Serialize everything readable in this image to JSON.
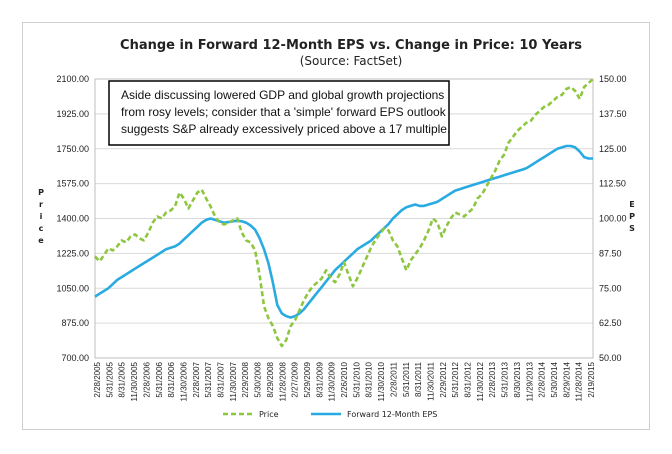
{
  "chart_data": {
    "type": "line",
    "title": "Change in Forward 12-Month EPS vs. Change in Price: 10 Years",
    "subtitle": "(Source: FactSet)",
    "ylabel_left": "Price",
    "ylabel_right": "EPS",
    "ylim_left": [
      700,
      2100
    ],
    "ylim_right": [
      50,
      150
    ],
    "yticks_left": [
      "2100.00",
      "1925.00",
      "1750.00",
      "1575.00",
      "1400.00",
      "1225.00",
      "1050.00",
      "875.00",
      "700.00"
    ],
    "yticks_right": [
      "150.00",
      "137.50",
      "125.00",
      "112.50",
      "100.00",
      "87.50",
      "75.00",
      "62.50",
      "50.00"
    ],
    "x_ticks": [
      "2/28/2005",
      "5/31/2005",
      "8/31/2005",
      "11/30/2005",
      "2/28/2006",
      "5/31/2006",
      "8/31/2006",
      "11/30/2006",
      "2/28/2007",
      "5/31/2007",
      "8/31/2007",
      "11/30/2007",
      "2/29/2008",
      "5/30/2008",
      "8/29/2008",
      "11/28/2008",
      "2/27/2009",
      "5/29/2009",
      "8/31/2009",
      "11/30/2009",
      "2/26/2010",
      "5/31/2010",
      "8/31/2010",
      "11/30/2010",
      "2/28/2011",
      "5/31/2011",
      "8/31/2011",
      "11/30/2011",
      "2/29/2012",
      "5/31/2012",
      "8/31/2012",
      "11/30/2012",
      "2/28/2013",
      "5/31/2013",
      "8/30/2013",
      "11/29/2013",
      "2/28/2014",
      "5/30/2014",
      "8/29/2014",
      "11/28/2014",
      "2/19/2015"
    ],
    "grid": true,
    "legend_position": "bottom",
    "annotation": [
      "Aside discussing lowered GDP and global growth projections",
      "from rosy levels; consider that a 'simple' forward EPS outlook",
      "suggests S&P already excessively priced above a 17 multiple."
    ],
    "series": [
      {
        "name": "Price",
        "axis": "left",
        "color": "#8DC63F",
        "style": "dashed",
        "values": [
          1210,
          1185,
          1215,
          1250,
          1240,
          1260,
          1290,
          1280,
          1310,
          1320,
          1300,
          1290,
          1330,
          1380,
          1410,
          1400,
          1430,
          1440,
          1460,
          1530,
          1500,
          1450,
          1490,
          1530,
          1545,
          1500,
          1460,
          1410,
          1380,
          1370,
          1380,
          1390,
          1400,
          1330,
          1290,
          1280,
          1240,
          1120,
          960,
          900,
          860,
          800,
          760,
          790,
          860,
          890,
          940,
          990,
          1030,
          1060,
          1080,
          1100,
          1140,
          1100,
          1080,
          1120,
          1180,
          1120,
          1060,
          1100,
          1150,
          1200,
          1250,
          1290,
          1320,
          1350,
          1340,
          1290,
          1260,
          1200,
          1140,
          1190,
          1220,
          1250,
          1290,
          1340,
          1400,
          1380,
          1310,
          1360,
          1400,
          1430,
          1420,
          1410,
          1430,
          1450,
          1500,
          1520,
          1560,
          1600,
          1640,
          1690,
          1720,
          1780,
          1810,
          1840,
          1860,
          1880,
          1890,
          1920,
          1940,
          1960,
          1970,
          1990,
          2010,
          2020,
          2050,
          2060,
          2040,
          2000,
          2060,
          2080,
          2100
        ]
      },
      {
        "name": "Forward 12-Month EPS",
        "axis": "right",
        "color": "#29ABE2",
        "style": "solid",
        "values": [
          72,
          73,
          74,
          75,
          76.5,
          78,
          79,
          80,
          81,
          82,
          83,
          84,
          85,
          86,
          87,
          88,
          89,
          89.5,
          90,
          91,
          92.5,
          94,
          95.5,
          97,
          98.5,
          99.5,
          100,
          99.5,
          99,
          98.5,
          98.7,
          99,
          99.2,
          99,
          98.5,
          97.5,
          96,
          93,
          89,
          84,
          77,
          69,
          66,
          65,
          64.5,
          65,
          66,
          67.5,
          69.5,
          71.5,
          73.5,
          75.5,
          77.5,
          79.5,
          81.5,
          83,
          84.5,
          86,
          87.5,
          89,
          90,
          91,
          92,
          93.5,
          95,
          96.5,
          98,
          100,
          101.5,
          103,
          104,
          104.5,
          105,
          104.5,
          104.5,
          105,
          105.5,
          106,
          107,
          108,
          109,
          110,
          110.5,
          111,
          111.5,
          112,
          112.5,
          113,
          113.5,
          114,
          114.5,
          115,
          115.5,
          116,
          116.5,
          117,
          117.5,
          118,
          119,
          120,
          121,
          122,
          123,
          124,
          125,
          125.5,
          126,
          126,
          125.5,
          124,
          122,
          121.5,
          121.5
        ]
      }
    ]
  }
}
